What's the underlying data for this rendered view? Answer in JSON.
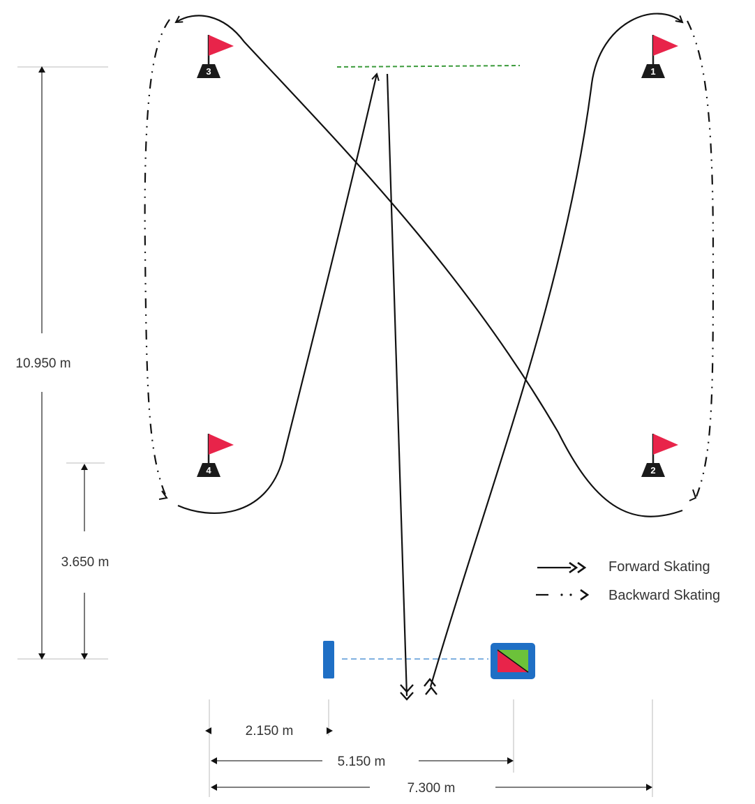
{
  "colors": {
    "flag": "#e8244a",
    "cone": "#1a1a1a",
    "path": "#111111",
    "start_line": "#3a9a3a",
    "finish_line": "#7fb0e0",
    "gate_blue": "#1f6fc5",
    "gate_green": "#6cc23a",
    "gate_red": "#e8244a",
    "dim": "#333333"
  },
  "flags": [
    {
      "number": "1"
    },
    {
      "number": "2"
    },
    {
      "number": "3"
    },
    {
      "number": "4"
    }
  ],
  "dimensions": {
    "vertical_total": "10.950 m",
    "vertical_short": "3.650 m",
    "horizontal_1": "2.150 m",
    "horizontal_2": "5.150 m",
    "horizontal_3": "7.300 m"
  },
  "legend": {
    "forward": "Forward Skating",
    "backward": "Backward Skating"
  },
  "icons": {
    "flag": "flag-icon",
    "gate_post": "post-icon",
    "gate_box": "gate-box-icon"
  }
}
